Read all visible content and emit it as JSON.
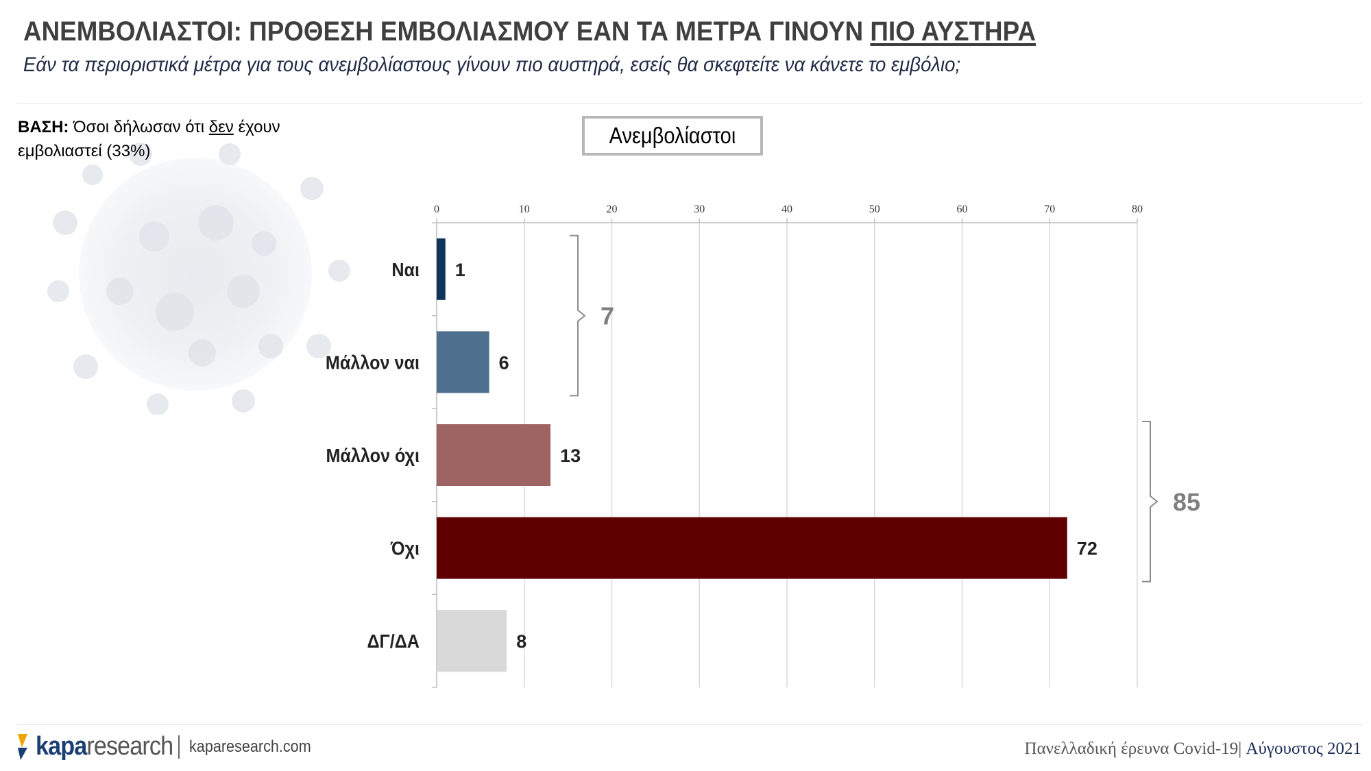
{
  "header": {
    "title_main": "ΑΝΕΜΒΟΛΙΑΣΤΟΙ: ΠΡΟΘΕΣΗ ΕΜΒΟΛΙΑΣΜΟΥ ΕΑΝ ΤΑ ΜΕΤΡΑ ΓΙΝΟΥΝ ",
    "title_underlined": "ΠΙΟ ΑΥΣΤΗΡΑ",
    "subtitle": "Εάν τα περιοριστικά μέτρα για τους ανεμβολίαστους γίνουν πιο αυστηρά, εσείς θα σκεφτείτε να κάνετε το εμβόλιο;"
  },
  "base_note": {
    "label": "ΒΑΣΗ:",
    "text_before": " Όσοι δήλωσαν ότι ",
    "underlined": "δεν",
    "text_after": " έχουν εμβολιαστεί (33%)"
  },
  "legend_label": "Ανεμβολίαστοι",
  "chart_data": {
    "type": "bar",
    "orientation": "horizontal",
    "categories": [
      "Ναι",
      "Μάλλον ναι",
      "Μάλλον όχι",
      "Όχι",
      "ΔΓ/ΔΑ"
    ],
    "values": [
      1,
      6,
      13,
      72,
      8
    ],
    "value_labels": [
      "1",
      "6",
      "13",
      "72",
      "8"
    ],
    "colors": [
      "#0e3458",
      "#4e708e",
      "#9e6363",
      "#5e0000",
      "#d9d9d9"
    ],
    "xlim": [
      0,
      80
    ],
    "x_ticks": [
      "0",
      "10",
      "20",
      "30",
      "40",
      "50",
      "60",
      "70",
      "80"
    ],
    "x_axis_position": "top",
    "grid": true,
    "series_name": "Ανεμβολίαστοι",
    "brackets": [
      {
        "covers": [
          "Ναι",
          "Μάλλον ναι"
        ],
        "total": "7"
      },
      {
        "covers": [
          "Μάλλον όχι",
          "Όχι"
        ],
        "total": "85"
      }
    ]
  },
  "footer": {
    "logo_bold": "kapa",
    "logo_light": "research",
    "url": "kaparesearch.com",
    "survey": "Πανελλαδική έρευνα Covid-19|",
    "date": " Αύγουστος 2021"
  }
}
